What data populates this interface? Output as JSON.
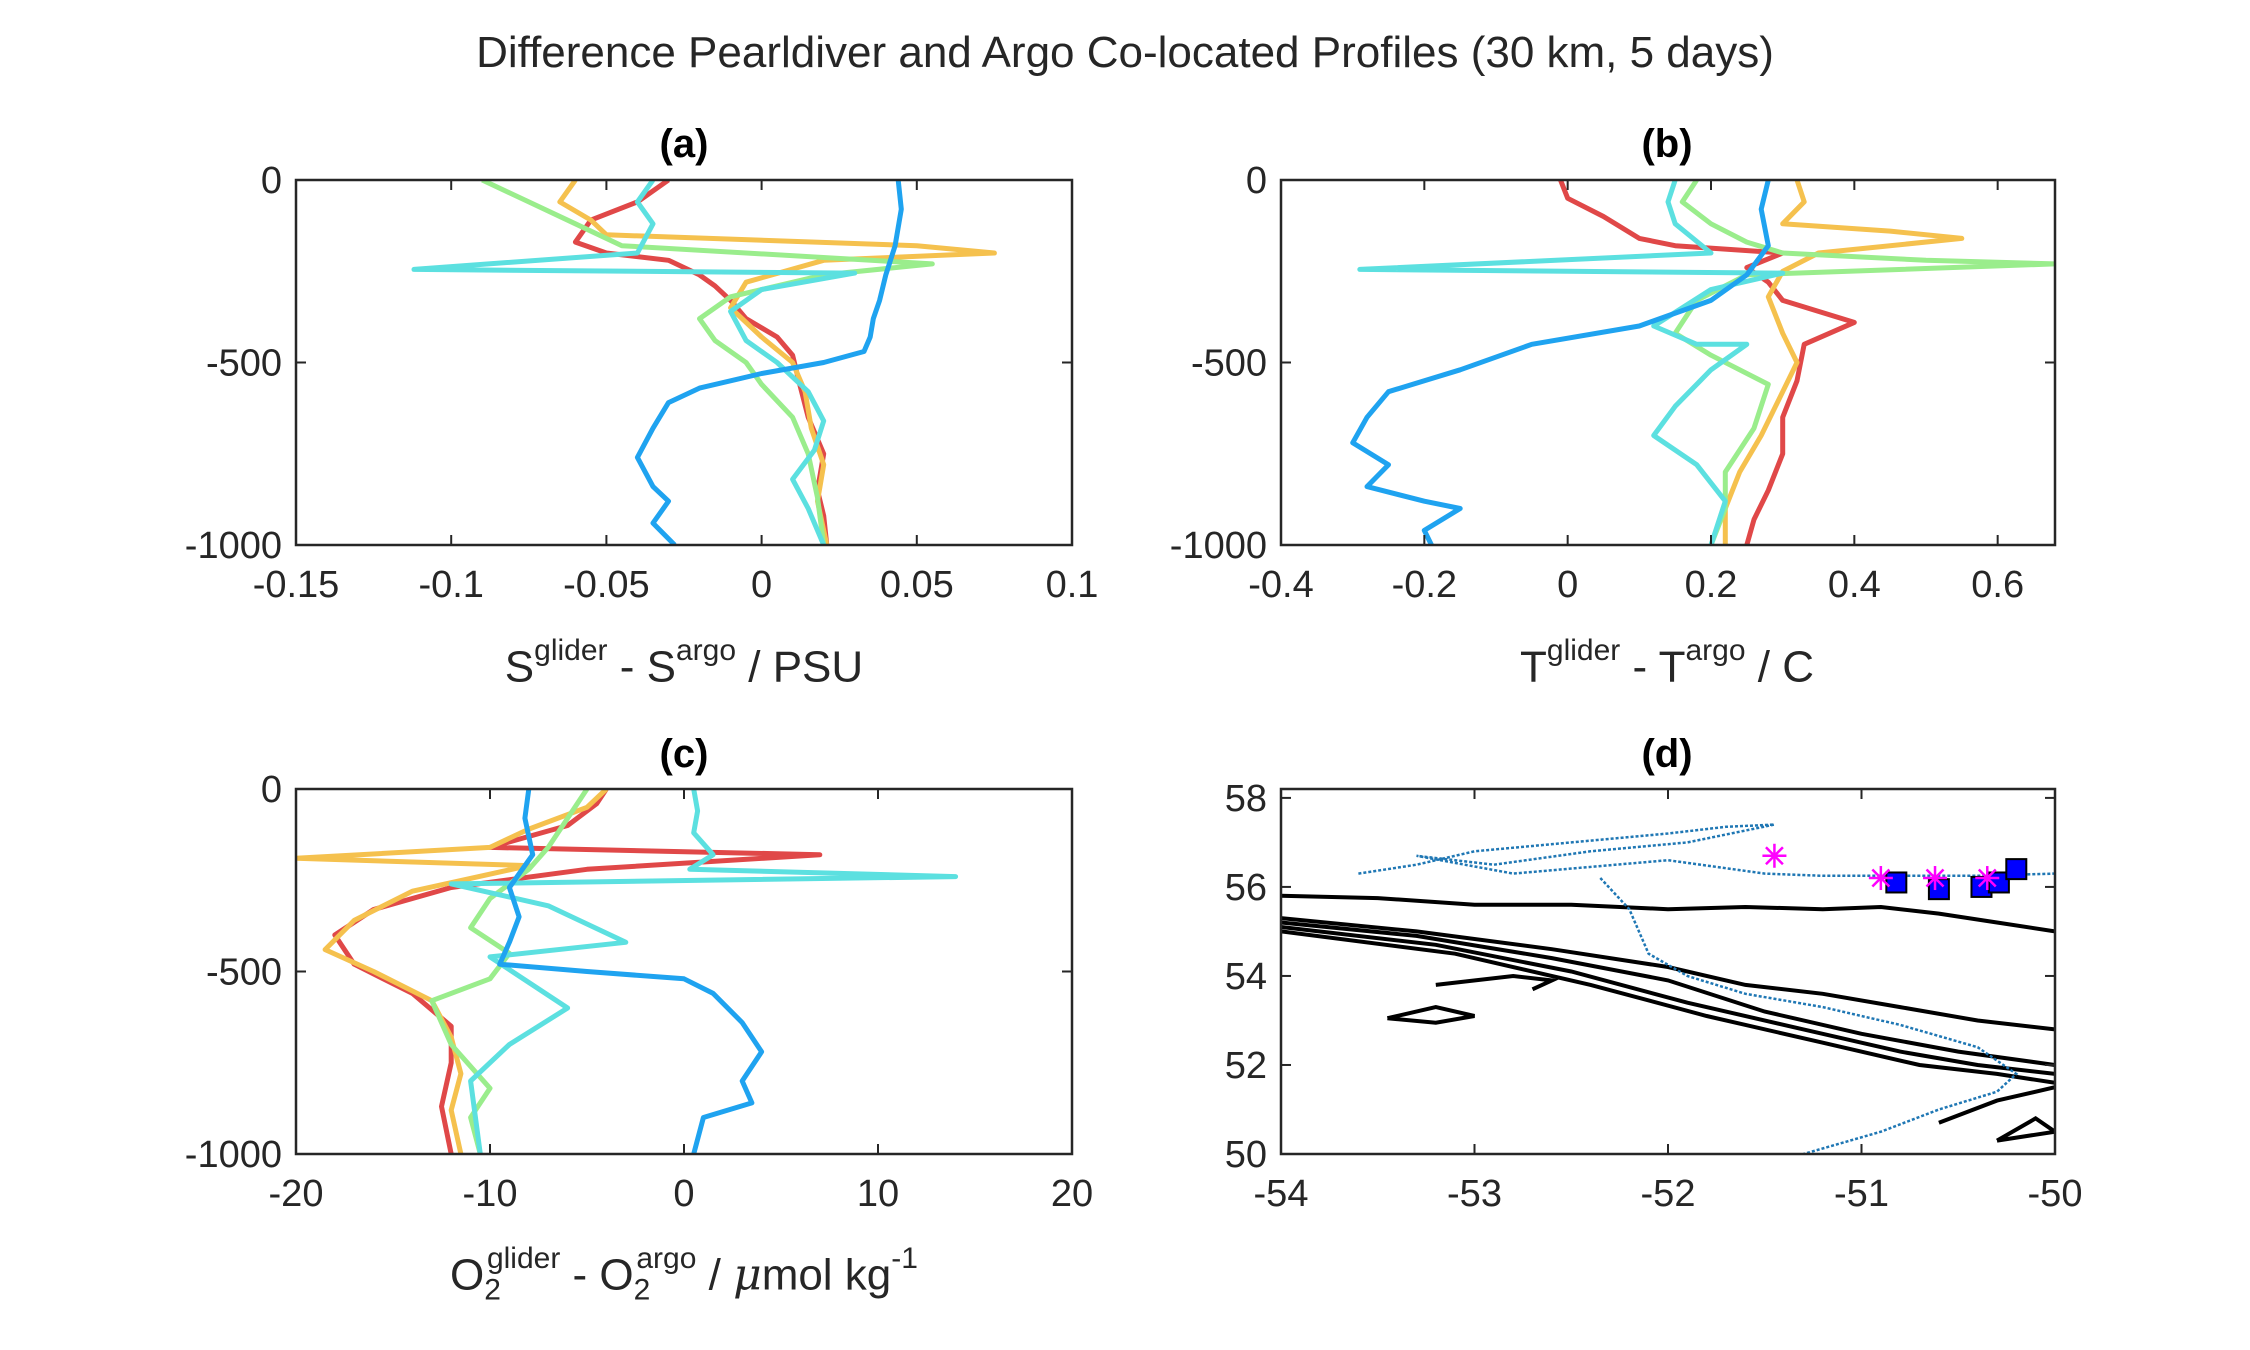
{
  "figure": {
    "title": "Difference Pearldiver and Argo Co-located Profiles (30 km, 5 days)"
  },
  "panels": {
    "a": {
      "label": "(a)",
      "xlabel_parts": [
        "S",
        "glider",
        " - S",
        "argo",
        " / PSU"
      ]
    },
    "b": {
      "label": "(b)",
      "xlabel_parts": [
        "T",
        "glider",
        " - T",
        "argo",
        " / C"
      ]
    },
    "c": {
      "label": "(c)",
      "xlabel_parts": [
        "O",
        "2",
        "glider",
        " - O",
        "2",
        "argo",
        " / ",
        "μ",
        "mol kg",
        "-1"
      ]
    },
    "d": {
      "label": "(d)"
    }
  },
  "colors": {
    "series": [
      "#1fa3f0",
      "#e04848",
      "#f5c14e",
      "#9aed8c",
      "#5ce0e0"
    ],
    "track": "#1f77b4",
    "contour": "#000000",
    "square": "#0000ff",
    "star": "#ff00ff"
  },
  "chart_data": [
    {
      "id": "a",
      "type": "line",
      "title": "(a)",
      "xlabel": "S^glider - S^argo / PSU",
      "ylabel": "",
      "xlim": [
        -0.15,
        0.1
      ],
      "ylim": [
        -1000,
        0
      ],
      "xticks": [
        -0.15,
        -0.1,
        -0.05,
        0,
        0.05,
        0.1
      ],
      "xtick_labels": [
        "-0.15",
        "-0.1",
        "-0.05",
        "0",
        "0.05",
        "0.1"
      ],
      "yticks": [
        0,
        -500,
        -1000
      ],
      "ytick_labels": [
        "0",
        "-500",
        "-1000"
      ],
      "series": [
        {
          "color": "#e04848",
          "x": [
            -0.03,
            -0.04,
            -0.055,
            -0.06,
            -0.05,
            -0.03,
            -0.02,
            -0.015,
            -0.01,
            -0.005,
            0.005,
            0.01,
            0.012,
            0.015,
            0.02,
            0.018,
            0.02,
            0.021
          ],
          "y": [
            0,
            -60,
            -110,
            -170,
            -200,
            -220,
            -260,
            -290,
            -330,
            -380,
            -430,
            -480,
            -550,
            -650,
            -750,
            -850,
            -920,
            -1000
          ]
        },
        {
          "color": "#f5c14e",
          "x": [
            -0.06,
            -0.065,
            -0.055,
            -0.05,
            0.05,
            0.075,
            0.02,
            -0.005,
            -0.01,
            0.0,
            0.01,
            0.014,
            0.016,
            0.02,
            0.018,
            0.021
          ],
          "y": [
            0,
            -60,
            -110,
            -150,
            -180,
            -200,
            -220,
            -280,
            -350,
            -430,
            -500,
            -580,
            -680,
            -780,
            -880,
            -1000
          ]
        },
        {
          "color": "#9aed8c",
          "x": [
            -0.09,
            -0.075,
            -0.06,
            -0.045,
            0.055,
            0.02,
            -0.01,
            -0.02,
            -0.015,
            -0.005,
            0.0,
            0.01,
            0.015,
            0.018,
            0.02
          ],
          "y": [
            0,
            -60,
            -120,
            -180,
            -230,
            -260,
            -320,
            -380,
            -440,
            -500,
            -560,
            -650,
            -750,
            -870,
            -1000
          ]
        },
        {
          "color": "#5ce0e0",
          "x": [
            -0.035,
            -0.04,
            -0.035,
            -0.04,
            -0.112,
            0.03,
            0.0,
            -0.01,
            -0.005,
            0.005,
            0.015,
            0.02,
            0.017,
            0.01,
            0.015,
            0.02
          ],
          "y": [
            0,
            -60,
            -120,
            -200,
            -245,
            -255,
            -300,
            -360,
            -440,
            -500,
            -580,
            -660,
            -740,
            -820,
            -900,
            -1000
          ]
        },
        {
          "color": "#1fa3f0",
          "x": [
            0.044,
            0.045,
            0.043,
            0.04,
            0.038,
            0.036,
            0.035,
            0.033,
            0.02,
            0.0,
            -0.02,
            -0.03,
            -0.035,
            -0.04,
            -0.035,
            -0.03,
            -0.035,
            -0.028
          ],
          "y": [
            0,
            -80,
            -180,
            -260,
            -330,
            -380,
            -430,
            -470,
            -500,
            -530,
            -570,
            -610,
            -680,
            -760,
            -840,
            -880,
            -940,
            -1000
          ]
        }
      ]
    },
    {
      "id": "b",
      "type": "line",
      "title": "(b)",
      "xlabel": "T^glider - T^argo / C",
      "ylabel": "",
      "xlim": [
        -0.4,
        0.68
      ],
      "ylim": [
        -1000,
        0
      ],
      "xticks": [
        -0.4,
        -0.2,
        0,
        0.2,
        0.4,
        0.6
      ],
      "xtick_labels": [
        "-0.4",
        "-0.2",
        "0",
        "0.2",
        "0.4",
        "0.6"
      ],
      "yticks": [
        0,
        -500,
        -1000
      ],
      "ytick_labels": [
        "0",
        "-500",
        "-1000"
      ],
      "series": [
        {
          "color": "#e04848",
          "x": [
            -0.01,
            0.0,
            0.05,
            0.1,
            0.15,
            0.3,
            0.25,
            0.28,
            0.3,
            0.35,
            0.4,
            0.33,
            0.32,
            0.3,
            0.3,
            0.28,
            0.26,
            0.25
          ],
          "y": [
            0,
            -50,
            -100,
            -160,
            -180,
            -200,
            -240,
            -280,
            -330,
            -360,
            -390,
            -450,
            -550,
            -650,
            -750,
            -850,
            -930,
            -1000
          ]
        },
        {
          "color": "#f5c14e",
          "x": [
            0.32,
            0.33,
            0.3,
            0.45,
            0.55,
            0.35,
            0.3,
            0.28,
            0.3,
            0.32,
            0.3,
            0.27,
            0.24,
            0.22,
            0.22
          ],
          "y": [
            0,
            -60,
            -120,
            -140,
            -160,
            -200,
            -250,
            -320,
            -420,
            -500,
            -580,
            -700,
            -800,
            -900,
            -1000
          ]
        },
        {
          "color": "#9aed8c",
          "x": [
            0.18,
            0.16,
            0.2,
            0.25,
            0.3,
            0.5,
            0.68,
            0.25,
            0.18,
            0.15,
            0.2,
            0.28,
            0.26,
            0.22,
            0.22,
            0.2
          ],
          "y": [
            0,
            -60,
            -120,
            -170,
            -200,
            -220,
            -230,
            -260,
            -330,
            -420,
            -480,
            -560,
            -680,
            -800,
            -900,
            -1000
          ]
        },
        {
          "color": "#5ce0e0",
          "x": [
            0.15,
            0.14,
            0.15,
            0.2,
            -0.29,
            0.3,
            0.2,
            0.12,
            0.18,
            0.25,
            0.2,
            0.15,
            0.12,
            0.18,
            0.22,
            0.2
          ],
          "y": [
            0,
            -60,
            -120,
            -200,
            -245,
            -255,
            -300,
            -400,
            -450,
            -450,
            -520,
            -620,
            -700,
            -780,
            -880,
            -1000
          ]
        },
        {
          "color": "#1fa3f0",
          "x": [
            0.28,
            0.27,
            0.28,
            0.25,
            0.2,
            0.1,
            -0.05,
            -0.15,
            -0.25,
            -0.28,
            -0.3,
            -0.25,
            -0.28,
            -0.2,
            -0.15,
            -0.2,
            -0.19
          ],
          "y": [
            0,
            -80,
            -180,
            -260,
            -330,
            -400,
            -450,
            -520,
            -580,
            -650,
            -720,
            -780,
            -840,
            -880,
            -900,
            -960,
            -1000
          ]
        }
      ]
    },
    {
      "id": "c",
      "type": "line",
      "title": "(c)",
      "xlabel": "O2^glider - O2^argo / μmol kg^-1",
      "ylabel": "",
      "xlim": [
        -20,
        20
      ],
      "ylim": [
        -1000,
        0
      ],
      "xticks": [
        -20,
        -10,
        0,
        10,
        20
      ],
      "xtick_labels": [
        "-20",
        "-10",
        "0",
        "10",
        "20"
      ],
      "yticks": [
        0,
        -500,
        -1000
      ],
      "ytick_labels": [
        "0",
        "-500",
        "-1000"
      ],
      "series": [
        {
          "color": "#e04848",
          "x": [
            -4,
            -4.5,
            -6,
            -10,
            7,
            -5,
            -12,
            -16,
            -18,
            -17,
            -14,
            -12,
            -12,
            -12.5,
            -12
          ],
          "y": [
            0,
            -40,
            -100,
            -160,
            -180,
            -220,
            -270,
            -330,
            -400,
            -480,
            -560,
            -650,
            -750,
            -870,
            -1000
          ]
        },
        {
          "color": "#f5c14e",
          "x": [
            -4,
            -5,
            -8,
            -10,
            -20,
            -8,
            -14,
            -17,
            -18.5,
            -16,
            -13,
            -12,
            -11.5,
            -12,
            -11.5
          ],
          "y": [
            0,
            -50,
            -110,
            -160,
            -190,
            -210,
            -280,
            -360,
            -440,
            -500,
            -580,
            -680,
            -780,
            -880,
            -1000
          ]
        },
        {
          "color": "#9aed8c",
          "x": [
            -5,
            -6,
            -7,
            -8,
            -10,
            -11,
            -9,
            -10,
            -13,
            -12,
            -10,
            -11,
            -10.5
          ],
          "y": [
            0,
            -80,
            -160,
            -220,
            -300,
            -380,
            -450,
            -520,
            -580,
            -700,
            -820,
            -900,
            -1000
          ]
        },
        {
          "color": "#5ce0e0",
          "x": [
            0.5,
            0.7,
            0.5,
            1.5,
            0.3,
            14,
            -12,
            -7,
            -3,
            -10,
            -6,
            -9,
            -11,
            -10.5
          ],
          "y": [
            0,
            -60,
            -120,
            -180,
            -220,
            -240,
            -260,
            -320,
            -420,
            -460,
            -600,
            -700,
            -800,
            -1000
          ]
        },
        {
          "color": "#1fa3f0",
          "x": [
            -8,
            -8.2,
            -7.8,
            -9,
            -8.5,
            -9,
            -9.5,
            -5,
            0,
            1.5,
            3,
            4,
            3,
            3.5,
            1,
            0.5
          ],
          "y": [
            0,
            -80,
            -180,
            -270,
            -350,
            -420,
            -480,
            -500,
            -520,
            -560,
            -640,
            -720,
            -800,
            -860,
            -900,
            -1000
          ]
        }
      ]
    },
    {
      "id": "d",
      "type": "scatter",
      "title": "(d)",
      "xlabel": "",
      "ylabel": "",
      "xlim": [
        -54,
        -50
      ],
      "ylim": [
        50,
        58.2
      ],
      "xticks": [
        -54,
        -53,
        -52,
        -51,
        -50
      ],
      "xtick_labels": [
        "-54",
        "-53",
        "-52",
        "-51",
        "-50"
      ],
      "yticks": [
        50,
        52,
        54,
        56,
        58
      ],
      "ytick_labels": [
        "50",
        "52",
        "54",
        "56",
        "58"
      ],
      "squares": {
        "x": [
          -50.82,
          -50.6,
          -50.38,
          -50.29,
          -50.2
        ],
        "y": [
          56.1,
          55.95,
          56.0,
          56.1,
          56.4
        ]
      },
      "stars": {
        "x": [
          -51.45,
          -50.9,
          -50.62,
          -50.35
        ],
        "y": [
          56.7,
          56.2,
          56.2,
          56.2
        ]
      },
      "track": {
        "x": [
          -53.6,
          -53.3,
          -53.0,
          -52.5,
          -52.0,
          -51.7,
          -51.45,
          -51.9,
          -52.4,
          -52.9,
          -53.3,
          -52.8,
          -52.0,
          -51.5,
          -51.2,
          -50.8,
          -50.4,
          -50.0
        ],
        "y": [
          56.3,
          56.5,
          56.8,
          57.0,
          57.2,
          57.35,
          57.4,
          57.0,
          56.8,
          56.5,
          56.7,
          56.3,
          56.6,
          56.3,
          56.25,
          56.25,
          56.25,
          56.3
        ]
      },
      "track2": {
        "x": [
          -52.35,
          -52.2,
          -52.1,
          -51.9,
          -51.6,
          -51.2,
          -50.8,
          -50.4,
          -50.2,
          -50.3,
          -50.6,
          -50.9,
          -51.3
        ],
        "y": [
          56.2,
          55.5,
          54.5,
          54.0,
          53.6,
          53.3,
          52.9,
          52.4,
          51.8,
          51.4,
          51.0,
          50.5,
          50.0
        ]
      },
      "contours": [
        {
          "x": [
            -54,
            -53.5,
            -53,
            -52.5,
            -52,
            -51.6,
            -51.2,
            -50.9,
            -50.6,
            -50.3,
            -50
          ],
          "y": [
            55.8,
            55.75,
            55.6,
            55.6,
            55.5,
            55.55,
            55.5,
            55.55,
            55.4,
            55.2,
            55.0
          ]
        },
        {
          "x": [
            -54,
            -53.3,
            -52.6,
            -52.0,
            -51.6,
            -51.2,
            -50.8,
            -50.4,
            -50.0
          ],
          "y": [
            55.3,
            55.0,
            54.6,
            54.2,
            53.8,
            53.6,
            53.3,
            53.0,
            52.8
          ]
        },
        {
          "x": [
            -54,
            -53.3,
            -52.6,
            -52.0,
            -51.5,
            -51.0,
            -50.5,
            -50.0
          ],
          "y": [
            55.2,
            54.9,
            54.4,
            53.9,
            53.2,
            52.7,
            52.3,
            52.0
          ]
        },
        {
          "x": [
            -54,
            -53.2,
            -52.5,
            -51.9,
            -51.3,
            -50.8,
            -50.4,
            -50.0
          ],
          "y": [
            55.1,
            54.7,
            54.1,
            53.4,
            52.8,
            52.3,
            52.0,
            51.8
          ]
        },
        {
          "x": [
            -54,
            -53.1,
            -52.4,
            -51.8,
            -51.2,
            -50.7,
            -50.3,
            -50.0
          ],
          "y": [
            55.0,
            54.5,
            53.8,
            53.1,
            52.5,
            52.0,
            51.8,
            51.6
          ]
        },
        {
          "x": [
            -53.45,
            -53.2,
            -53.0,
            -53.2,
            -53.45
          ],
          "y": [
            53.05,
            53.3,
            53.1,
            52.95,
            53.05
          ]
        },
        {
          "x": [
            -53.2,
            -52.8,
            -52.6,
            -52.7
          ],
          "y": [
            53.8,
            54.0,
            53.9,
            53.7
          ]
        },
        {
          "x": [
            -50.6,
            -50.3,
            -50.0
          ],
          "y": [
            50.7,
            51.2,
            51.5
          ]
        },
        {
          "x": [
            -50.3,
            -50.0,
            -50.1,
            -50.3
          ],
          "y": [
            50.3,
            50.5,
            50.8,
            50.3
          ]
        }
      ]
    }
  ]
}
